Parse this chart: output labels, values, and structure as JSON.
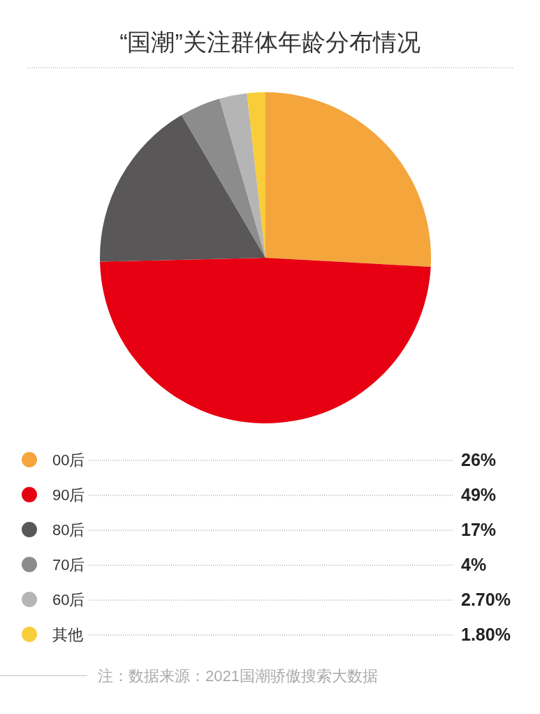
{
  "chart_data": {
    "type": "pie",
    "title": "“国潮”关注群体年龄分布情况",
    "categories": [
      "00后",
      "90后",
      "80后",
      "70后",
      "60后",
      "其他"
    ],
    "values": [
      26,
      49,
      17,
      4,
      2.7,
      1.8
    ],
    "value_labels": [
      "26%",
      "49%",
      "17%",
      "4%",
      "2.70%",
      "1.80%"
    ],
    "colors": [
      "#f4a53c",
      "#e60012",
      "#595757",
      "#8c8c8c",
      "#b5b5b6",
      "#f9cc3a"
    ],
    "legend": "bottom",
    "annotations": [
      "注：数据来源：2021国潮骄傲搜索大数据"
    ]
  }
}
